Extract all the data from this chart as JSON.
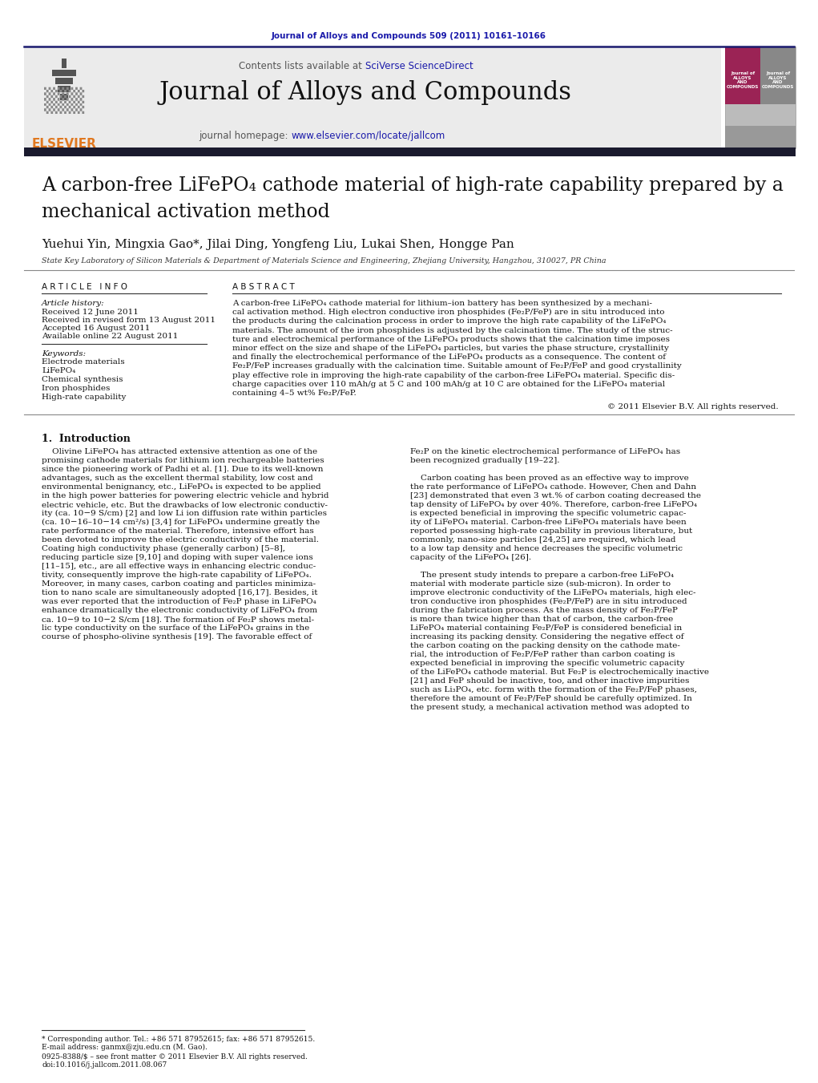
{
  "journal_citation": "Journal of Alloys and Compounds 509 (2011) 10161–10166",
  "contents_line": "Contents lists available at ",
  "sciverse_text": "SciVerse ScienceDirect",
  "journal_title": "Journal of Alloys and Compounds",
  "journal_homepage_prefix": "journal homepage: ",
  "journal_homepage_url": "www.elsevier.com/locate/jallcom",
  "elsevier_text": "ELSEVIER",
  "authors": "Yuehui Yin, Mingxia Gao*, Jilai Ding, Yongfeng Liu, Lukai Shen, Hongge Pan",
  "affiliation": "State Key Laboratory of Silicon Materials & Department of Materials Science and Engineering, Zhejiang University, Hangzhou, 310027, PR China",
  "article_info_header": "A R T I C L E   I N F O",
  "article_history_label": "Article history:",
  "received": "Received 12 June 2011",
  "revised": "Received in revised form 13 August 2011",
  "accepted": "Accepted 16 August 2011",
  "available": "Available online 22 August 2011",
  "keywords_label": "Keywords:",
  "keywords": [
    "Electrode materials",
    "LiFePO₄",
    "Chemical synthesis",
    "Iron phosphides",
    "High-rate capability"
  ],
  "abstract_header": "A B S T R A C T",
  "copyright": "© 2011 Elsevier B.V. All rights reserved.",
  "intro_header": "1.  Introduction",
  "footnote_star": "* Corresponding author. Tel.: +86 571 87952615; fax: +86 571 87952615.",
  "footnote_email": "E-mail address: ganmx@zju.edu.cn (M. Gao).",
  "footnote_issn": "0925-8388/$ – see front matter © 2011 Elsevier B.V. All rights reserved.",
  "footnote_doi": "doi:10.1016/j.jallcom.2011.08.067",
  "background_color": "#ffffff",
  "blue_link_color": "#1a1aaa",
  "orange_elsevier": "#e07820",
  "dark_bar_color": "#1a1a2e"
}
